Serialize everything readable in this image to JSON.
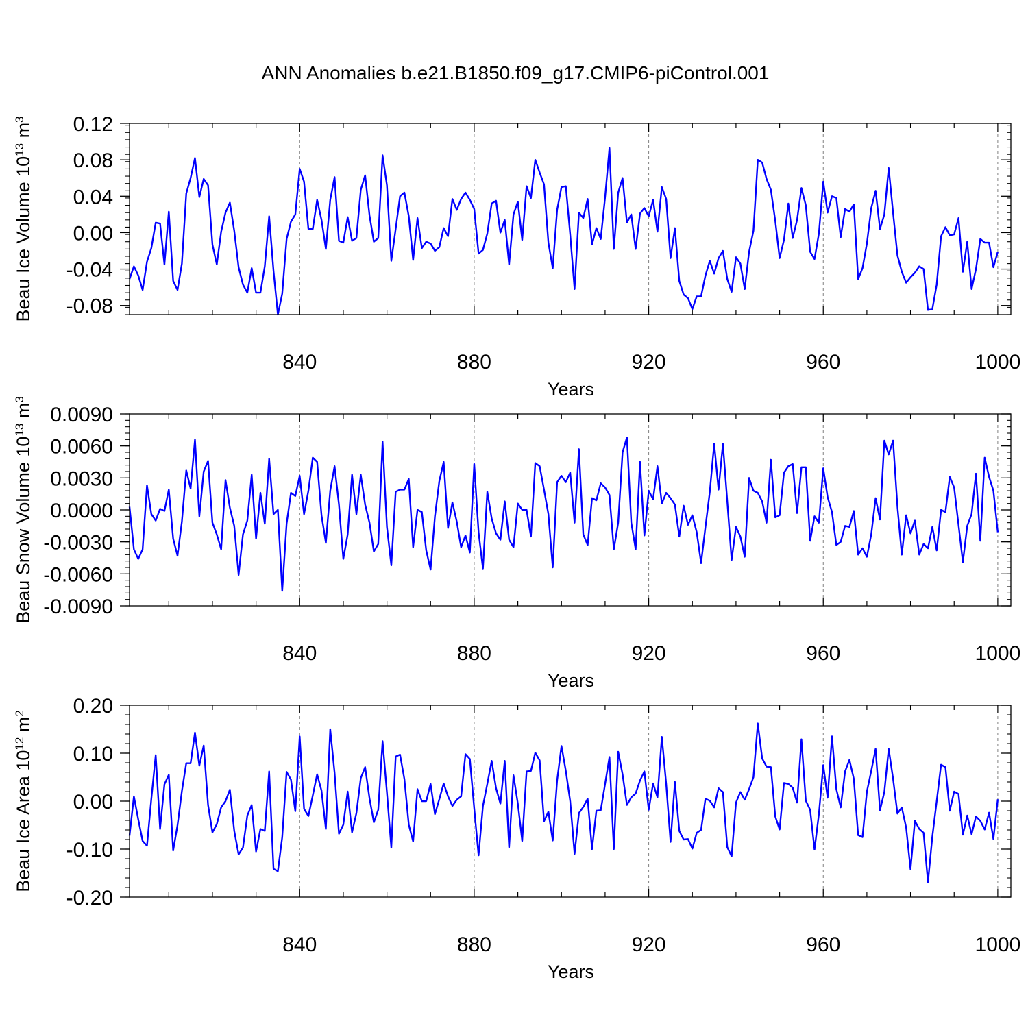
{
  "chart_data": {
    "title": "ANN Anomalies b.e21.B1850.f09_g17.CMIP6-piControl.001",
    "panels": [
      {
        "type": "line",
        "name": "ice-volume",
        "ylabel": "Beau Ice Volume 10",
        "ylabel_exp": "13",
        "ylabel_unit": " m",
        "ylabel_unit_exp": "3",
        "xlabel": "Years",
        "xlim": [
          801,
          1003
        ],
        "ylim": [
          -0.09,
          0.12
        ],
        "yticks": [
          0.12,
          0.08,
          0.04,
          0.0,
          -0.04,
          -0.08
        ],
        "ytick_labels": [
          "0.12",
          "0.08",
          "0.04",
          "0.00",
          "-0.04",
          "-0.08"
        ],
        "xticks": [
          840,
          880,
          920,
          960,
          1000
        ],
        "xtick_labels": [
          "840",
          "880",
          "920",
          "960",
          "1000"
        ],
        "color": "#0000ff",
        "x_start": 801,
        "values": [
          -0.051,
          -0.037,
          -0.047,
          -0.063,
          -0.032,
          -0.017,
          0.011,
          0.01,
          -0.035,
          0.023,
          -0.053,
          -0.063,
          -0.034,
          0.043,
          0.06,
          0.082,
          0.039,
          0.059,
          0.052,
          -0.013,
          -0.035,
          0.001,
          0.022,
          0.033,
          0.002,
          -0.038,
          -0.057,
          -0.066,
          -0.039,
          -0.066,
          -0.066,
          -0.037,
          0.018,
          -0.042,
          -0.09,
          -0.067,
          -0.007,
          0.012,
          0.02,
          0.07,
          0.056,
          0.004,
          0.004,
          0.036,
          0.014,
          -0.018,
          0.036,
          0.061,
          -0.009,
          -0.011,
          0.017,
          -0.009,
          -0.006,
          0.047,
          0.063,
          0.019,
          -0.01,
          -0.006,
          0.085,
          0.052,
          -0.031,
          0.004,
          0.04,
          0.044,
          0.018,
          -0.03,
          0.016,
          -0.017,
          -0.01,
          -0.012,
          -0.02,
          -0.016,
          0.005,
          -0.004,
          0.037,
          0.025,
          0.037,
          0.044,
          0.036,
          0.026,
          -0.023,
          -0.019,
          -0.001,
          0.032,
          0.035,
          0.0,
          0.014,
          -0.035,
          0.02,
          0.034,
          -0.008,
          0.051,
          0.038,
          0.08,
          0.066,
          0.053,
          -0.011,
          -0.039,
          0.025,
          0.05,
          0.051,
          -0.002,
          -0.062,
          0.022,
          0.016,
          0.037,
          -0.013,
          0.005,
          -0.007,
          0.039,
          0.093,
          -0.018,
          0.044,
          0.06,
          0.011,
          0.02,
          -0.018,
          0.021,
          0.027,
          0.018,
          0.036,
          0.001,
          0.05,
          0.037,
          -0.028,
          0.005,
          -0.053,
          -0.068,
          -0.072,
          -0.084,
          -0.07,
          -0.07,
          -0.047,
          -0.031,
          -0.045,
          -0.028,
          -0.02,
          -0.051,
          -0.065,
          -0.027,
          -0.034,
          -0.062,
          -0.021,
          0.002,
          0.08,
          0.077,
          0.059,
          0.047,
          0.013,
          -0.028,
          -0.008,
          0.032,
          -0.006,
          0.014,
          0.049,
          0.03,
          -0.021,
          -0.029,
          -0.001,
          0.056,
          0.022,
          0.04,
          0.038,
          -0.005,
          0.026,
          0.023,
          0.031,
          -0.051,
          -0.039,
          -0.012,
          0.027,
          0.046,
          0.004,
          0.02,
          0.071,
          0.022,
          -0.025,
          -0.043,
          -0.055,
          -0.049,
          -0.044,
          -0.037,
          -0.04,
          -0.085,
          -0.084,
          -0.057,
          -0.004,
          0.006,
          -0.003,
          -0.002,
          0.016,
          -0.043,
          -0.01,
          -0.062,
          -0.04,
          -0.007,
          -0.011,
          -0.011,
          -0.038,
          -0.021
        ]
      },
      {
        "type": "line",
        "name": "snow-volume",
        "ylabel": "Beau Snow Volume 10",
        "ylabel_exp": "13",
        "ylabel_unit": " m",
        "ylabel_unit_exp": "3",
        "xlabel": "Years",
        "xlim": [
          801,
          1003
        ],
        "ylim": [
          -0.009,
          0.009
        ],
        "yticks": [
          0.009,
          0.006,
          0.003,
          0.0,
          -0.003,
          -0.006,
          -0.009
        ],
        "ytick_labels": [
          "0.0090",
          "0.0060",
          "0.0030",
          "0.0000",
          "-0.0030",
          "-0.0060",
          "-0.0090"
        ],
        "xticks": [
          840,
          880,
          920,
          960,
          1000
        ],
        "xtick_labels": [
          "840",
          "880",
          "920",
          "960",
          "1000"
        ],
        "color": "#0000ff",
        "x_start": 801,
        "values": [
          0.0003,
          -0.0037,
          -0.0046,
          -0.0037,
          0.0023,
          -0.0004,
          -0.001,
          0.0001,
          -0.0001,
          0.0019,
          -0.0027,
          -0.0043,
          -0.0011,
          0.0037,
          0.002,
          0.0066,
          -0.0006,
          0.0036,
          0.0046,
          -0.0012,
          -0.0023,
          -0.0037,
          0.0028,
          0.0002,
          -0.0015,
          -0.0061,
          -0.0023,
          -0.001,
          0.0033,
          -0.0027,
          0.0016,
          -0.0013,
          0.0048,
          -0.0004,
          0.0,
          -0.0076,
          -0.0013,
          0.0016,
          0.0013,
          0.0032,
          -0.0004,
          0.0018,
          0.0049,
          0.0045,
          -0.0005,
          -0.0031,
          0.0018,
          0.0041,
          0.0005,
          -0.0046,
          -0.0023,
          0.0033,
          -0.0004,
          0.0033,
          0.0005,
          -0.0012,
          -0.0039,
          -0.0032,
          0.0064,
          -0.0016,
          -0.0052,
          0.0017,
          0.0019,
          0.0019,
          0.0029,
          -0.0035,
          0.0,
          -0.0002,
          -0.0038,
          -0.0056,
          -0.0006,
          0.0027,
          0.0045,
          -0.0017,
          0.0007,
          -0.0011,
          -0.0035,
          -0.0024,
          -0.004,
          0.0043,
          -0.0021,
          -0.0055,
          0.0017,
          -0.0008,
          -0.0022,
          -0.0028,
          0.0008,
          -0.0028,
          -0.0035,
          0.0006,
          0.0,
          0.0,
          -0.0025,
          0.0044,
          0.0041,
          0.0019,
          -0.0004,
          -0.0054,
          0.0026,
          0.0032,
          0.0026,
          0.0035,
          -0.0012,
          0.0057,
          -0.0023,
          -0.0033,
          0.0011,
          0.0009,
          0.0025,
          0.0021,
          0.0014,
          -0.0037,
          -0.0012,
          0.0054,
          0.0068,
          -0.0012,
          -0.0037,
          0.0045,
          -0.0024,
          0.0018,
          0.001,
          0.0041,
          0.0006,
          0.0016,
          0.0011,
          0.0005,
          -0.0025,
          0.0004,
          -0.0014,
          -0.0005,
          -0.0021,
          -0.005,
          -0.0016,
          0.0017,
          0.0062,
          0.0019,
          0.0062,
          0.0008,
          -0.0047,
          -0.0016,
          -0.0025,
          -0.0044,
          0.003,
          0.0018,
          0.0016,
          0.0008,
          -0.0012,
          0.0047,
          -0.0007,
          -0.0005,
          0.0035,
          0.0041,
          0.0043,
          -0.0003,
          0.004,
          0.004,
          -0.0029,
          -0.0006,
          -0.0012,
          0.0039,
          0.0012,
          -0.0002,
          -0.0033,
          -0.003,
          -0.0015,
          -0.0016,
          -0.0001,
          -0.0042,
          -0.0036,
          -0.0044,
          -0.0023,
          0.0011,
          -0.0009,
          0.0065,
          0.0052,
          0.0065,
          0.0003,
          -0.0042,
          -0.0005,
          -0.0022,
          -0.001,
          -0.0042,
          -0.0032,
          -0.0036,
          -0.0016,
          -0.0038,
          0.0,
          -0.0002,
          0.0031,
          0.0021,
          -0.0014,
          -0.0049,
          -0.0015,
          -0.0004,
          0.0034,
          -0.0029,
          0.0049,
          0.0031,
          0.0018,
          -0.0021
        ]
      },
      {
        "type": "line",
        "name": "ice-area",
        "ylabel": "Beau Ice Area 10",
        "ylabel_exp": "12",
        "ylabel_unit": " m",
        "ylabel_unit_exp": "2",
        "xlabel": "Years",
        "xlim": [
          801,
          1003
        ],
        "ylim": [
          -0.2,
          0.2
        ],
        "yticks": [
          0.2,
          0.1,
          0.0,
          -0.1,
          -0.2
        ],
        "ytick_labels": [
          "0.20",
          "0.10",
          "0.00",
          "-0.10",
          "-0.20"
        ],
        "xticks": [
          840,
          880,
          920,
          960,
          1000
        ],
        "xtick_labels": [
          "840",
          "880",
          "920",
          "960",
          "1000"
        ],
        "color": "#0000ff",
        "x_start": 801,
        "values": [
          -0.072,
          0.01,
          -0.038,
          -0.083,
          -0.093,
          0.005,
          0.096,
          -0.058,
          0.035,
          0.055,
          -0.103,
          -0.05,
          0.021,
          0.079,
          0.079,
          0.143,
          0.074,
          0.116,
          -0.008,
          -0.065,
          -0.048,
          -0.013,
          0.0,
          0.024,
          -0.062,
          -0.111,
          -0.097,
          -0.03,
          -0.008,
          -0.105,
          -0.058,
          -0.062,
          0.062,
          -0.141,
          -0.146,
          -0.075,
          0.061,
          0.045,
          -0.021,
          0.135,
          -0.016,
          -0.031,
          0.012,
          0.056,
          0.022,
          -0.058,
          0.15,
          0.059,
          -0.068,
          -0.049,
          0.02,
          -0.065,
          -0.025,
          0.048,
          0.071,
          0.006,
          -0.044,
          -0.018,
          0.125,
          0.018,
          -0.097,
          0.093,
          0.097,
          0.046,
          -0.049,
          -0.084,
          0.025,
          0.0,
          0.0,
          0.036,
          -0.027,
          0.004,
          0.037,
          0.01,
          -0.01,
          0.003,
          0.01,
          0.098,
          0.088,
          -0.015,
          -0.113,
          -0.01,
          0.036,
          0.084,
          0.027,
          -0.005,
          0.084,
          -0.096,
          0.054,
          -0.005,
          -0.083,
          0.062,
          0.063,
          0.101,
          0.085,
          -0.042,
          -0.022,
          -0.082,
          0.043,
          0.115,
          0.063,
          0.0,
          -0.11,
          -0.025,
          -0.012,
          0.005,
          -0.1,
          -0.02,
          -0.019,
          0.036,
          0.092,
          -0.1,
          0.103,
          0.056,
          -0.008,
          0.008,
          0.016,
          0.043,
          0.062,
          -0.018,
          0.037,
          0.008,
          0.134,
          0.036,
          -0.085,
          0.04,
          -0.062,
          -0.08,
          -0.079,
          -0.099,
          -0.066,
          -0.06,
          0.005,
          0.001,
          -0.013,
          0.027,
          0.019,
          -0.096,
          -0.115,
          -0.003,
          0.019,
          0.003,
          0.025,
          0.05,
          0.162,
          0.089,
          0.072,
          0.071,
          -0.032,
          -0.059,
          0.038,
          0.036,
          0.028,
          -0.003,
          0.129,
          0.001,
          -0.018,
          -0.101,
          -0.027,
          0.075,
          0.007,
          0.135,
          0.025,
          -0.013,
          0.062,
          0.086,
          0.047,
          -0.071,
          -0.075,
          0.02,
          0.063,
          0.109,
          -0.019,
          0.019,
          0.109,
          0.047,
          -0.026,
          -0.013,
          -0.055,
          -0.142,
          -0.041,
          -0.058,
          -0.066,
          -0.169,
          -0.074,
          0.0,
          0.076,
          0.071,
          -0.02,
          0.02,
          0.015,
          -0.07,
          -0.03,
          -0.069,
          -0.032,
          -0.041,
          -0.059,
          -0.024,
          -0.079,
          0.004
        ]
      }
    ]
  }
}
